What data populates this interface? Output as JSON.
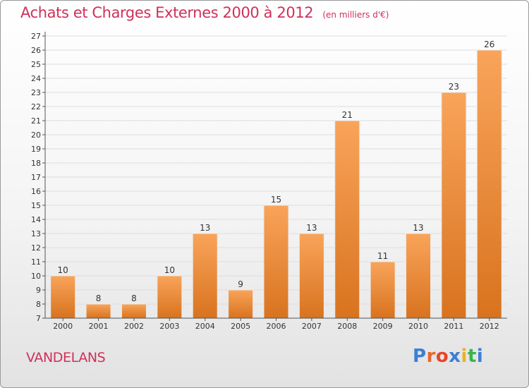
{
  "header": {
    "title": "Achats et Charges Externes 2000 à 2012",
    "unit_note": "(en milliers d'€)"
  },
  "footer": {
    "commune": "VANDELANS",
    "brand": "Proxiti",
    "brand_colors": [
      "#3b7fd4",
      "#e8662a",
      "#e8452a",
      "#3b7fd4",
      "#e8b22a",
      "#3bb54a",
      "#3b7fd4"
    ]
  },
  "colors": {
    "bar_light": "#f9a45a",
    "bar_dark": "#d8731f",
    "title": "#d0305a",
    "axis": "#555555",
    "grid": "#dddddd"
  },
  "chart_data": {
    "type": "bar",
    "categories": [
      "2000",
      "2001",
      "2002",
      "2003",
      "2004",
      "2005",
      "2006",
      "2007",
      "2008",
      "2009",
      "2010",
      "2011",
      "2012"
    ],
    "values": [
      10,
      8,
      8,
      10,
      13,
      9,
      15,
      13,
      21,
      11,
      13,
      23,
      26
    ],
    "data_labels": [
      "10",
      "8",
      "8",
      "10",
      "13",
      "9",
      "15",
      "13",
      "21",
      "11",
      "13",
      "23",
      "26"
    ],
    "ylim": [
      7,
      27
    ],
    "yticks": [
      "7",
      "8",
      "9",
      "10",
      "11",
      "12",
      "13",
      "14",
      "15",
      "16",
      "17",
      "18",
      "19",
      "20",
      "21",
      "22",
      "23",
      "24",
      "25",
      "26",
      "27"
    ],
    "title": "Achats et Charges Externes 2000 à 2012",
    "xlabel": "",
    "ylabel": "",
    "grid": true,
    "legend": "none"
  }
}
